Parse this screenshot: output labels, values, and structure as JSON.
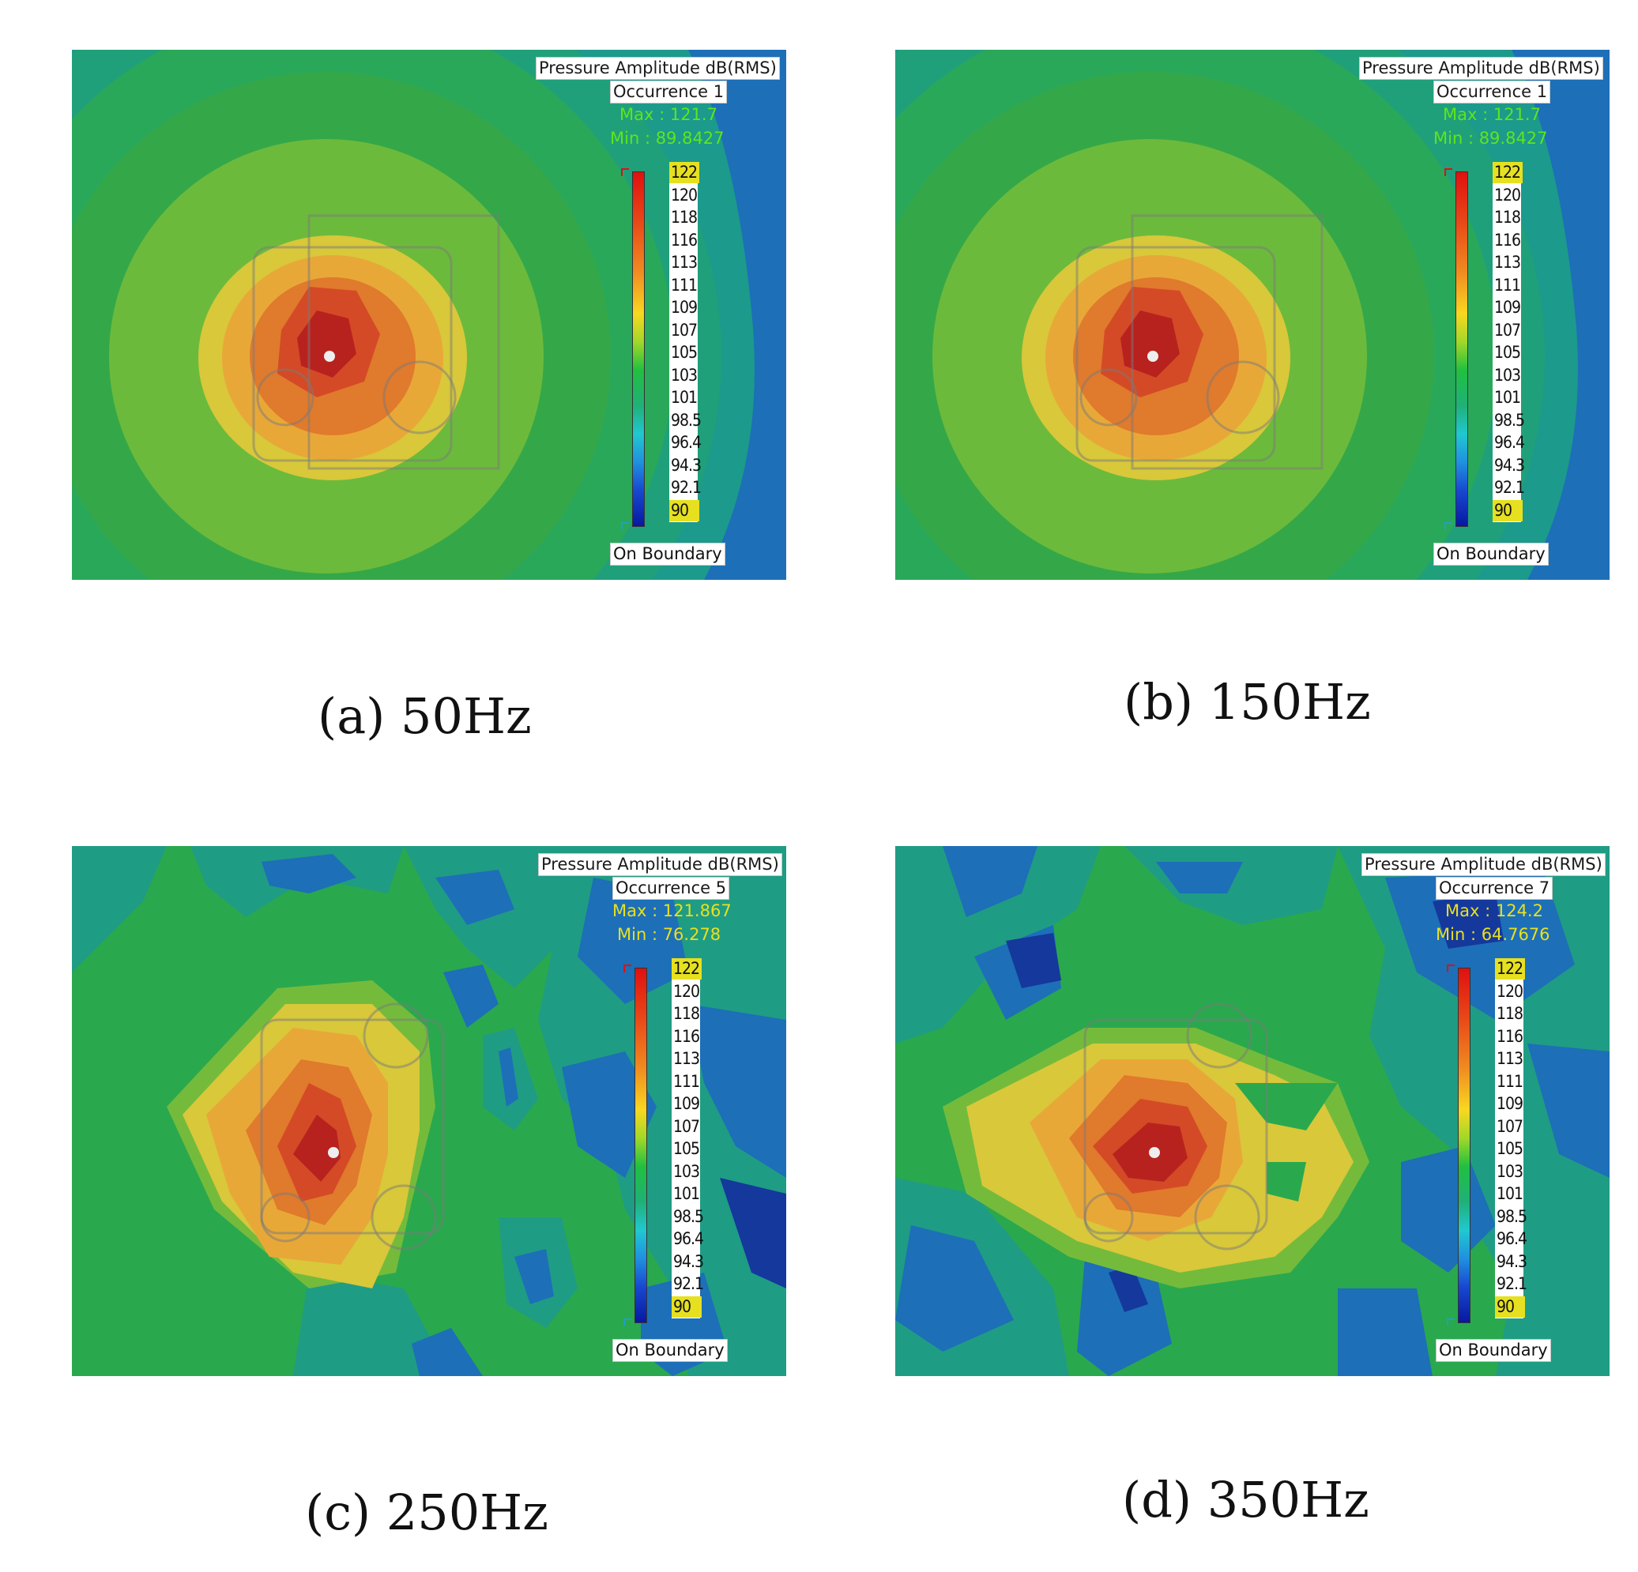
{
  "panels": [
    {
      "title": "Pressure Amplitude dB(RMS)",
      "occurrence": "Occurrence 1",
      "max": "Max : 121.7",
      "min": "Min : 89.8427",
      "minmax_color": "#5ee51e",
      "boundary": "On Boundary",
      "caption": "(a) 50Hz"
    },
    {
      "title": "Pressure Amplitude dB(RMS)",
      "occurrence": "Occurrence 1",
      "max": "Max : 121.7",
      "min": "Min : 89.8427",
      "minmax_color": "#5ee51e",
      "boundary": "On Boundary",
      "caption": "(b) 150Hz"
    },
    {
      "title": "Pressure Amplitude dB(RMS)",
      "occurrence": "Occurrence 5",
      "max": "Max : 121.867",
      "min": "Min : 76.278",
      "minmax_color": "#e8e020",
      "boundary": "On Boundary",
      "caption": "(c) 250Hz"
    },
    {
      "title": "Pressure Amplitude dB(RMS)",
      "occurrence": "Occurrence 7",
      "max": "Max : 124.2",
      "min": "Min : 64.7676",
      "minmax_color": "#e8e020",
      "boundary": "On Boundary",
      "caption": "(d) 350Hz"
    }
  ],
  "chart_data": [
    {
      "type": "heatmap",
      "title": "Pressure Amplitude dB(RMS)",
      "frequency_hz": 50,
      "occurrence": 1,
      "max": 121.7,
      "min": 89.8427,
      "color_scale": [
        122,
        120,
        118,
        116,
        113,
        111,
        109,
        107,
        105,
        103,
        101,
        98.5,
        96.4,
        94.3,
        92.1,
        90
      ],
      "color_scale_labels": [
        "122",
        "120",
        "118",
        "116",
        "113",
        "111",
        "109",
        "107",
        "105",
        "103",
        "101",
        "98.5",
        "96.4",
        "94.3",
        "92.1",
        "90"
      ]
    },
    {
      "type": "heatmap",
      "title": "Pressure Amplitude dB(RMS)",
      "frequency_hz": 150,
      "occurrence": 1,
      "max": 121.7,
      "min": 89.8427,
      "color_scale": [
        122,
        120,
        118,
        116,
        113,
        111,
        109,
        107,
        105,
        103,
        101,
        98.5,
        96.4,
        94.3,
        92.1,
        90
      ],
      "color_scale_labels": [
        "122",
        "120",
        "118",
        "116",
        "113",
        "111",
        "109",
        "107",
        "105",
        "103",
        "101",
        "98.5",
        "96.4",
        "94.3",
        "92.1",
        "90"
      ]
    },
    {
      "type": "heatmap",
      "title": "Pressure Amplitude dB(RMS)",
      "frequency_hz": 250,
      "occurrence": 5,
      "max": 121.867,
      "min": 76.278,
      "color_scale": [
        122,
        120,
        118,
        116,
        113,
        111,
        109,
        107,
        105,
        103,
        101,
        98.5,
        96.4,
        94.3,
        92.1,
        90
      ],
      "color_scale_labels": [
        "122",
        "120",
        "118",
        "116",
        "113",
        "111",
        "109",
        "107",
        "105",
        "103",
        "101",
        "98.5",
        "96.4",
        "94.3",
        "92.1",
        "90"
      ]
    },
    {
      "type": "heatmap",
      "title": "Pressure Amplitude dB(RMS)",
      "frequency_hz": 350,
      "occurrence": 7,
      "max": 124.2,
      "min": 64.7676,
      "color_scale": [
        122,
        120,
        118,
        116,
        113,
        111,
        109,
        107,
        105,
        103,
        101,
        98.5,
        96.4,
        94.3,
        92.1,
        90
      ],
      "color_scale_labels": [
        "122",
        "120",
        "118",
        "116",
        "113",
        "111",
        "109",
        "107",
        "105",
        "103",
        "101",
        "98.5",
        "96.4",
        "94.3",
        "92.1",
        "90"
      ]
    }
  ]
}
